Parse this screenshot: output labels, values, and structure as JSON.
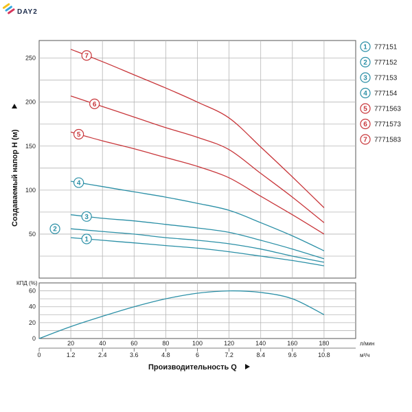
{
  "logo": {
    "text": "DAY2"
  },
  "chart_data": [
    {
      "type": "line",
      "ylabel": "Создаваемый напор Н (м)",
      "ylim": [
        0,
        270
      ],
      "xlim": [
        0,
        200
      ],
      "yticks": [
        0,
        50,
        100,
        150,
        200,
        250
      ],
      "grid": true,
      "legend_position": "right",
      "colors": {
        "red": "#c8363a",
        "teal": "#2a8fa6"
      },
      "series": [
        {
          "name": "777151",
          "number": "1",
          "color": "#2a8fa6",
          "label_at": 30,
          "x": [
            20,
            40,
            60,
            80,
            100,
            120,
            140,
            160,
            180
          ],
          "y": [
            46,
            43,
            40,
            37,
            34,
            30,
            25,
            20,
            14
          ]
        },
        {
          "name": "777152",
          "number": "2",
          "color": "#2a8fa6",
          "label_at": 10,
          "x": [
            20,
            40,
            60,
            80,
            100,
            120,
            140,
            160,
            180
          ],
          "y": [
            56,
            53,
            50,
            46,
            43,
            39,
            33,
            25,
            18
          ]
        },
        {
          "name": "777153",
          "number": "3",
          "color": "#2a8fa6",
          "label_at": 30,
          "x": [
            20,
            40,
            60,
            80,
            100,
            120,
            140,
            160,
            180
          ],
          "y": [
            72,
            68,
            65,
            61,
            57,
            52,
            43,
            33,
            22
          ]
        },
        {
          "name": "777154",
          "number": "4",
          "color": "#2a8fa6",
          "label_at": 25,
          "x": [
            20,
            40,
            60,
            80,
            100,
            120,
            140,
            160,
            180
          ],
          "y": [
            110,
            104,
            98,
            92,
            85,
            77,
            63,
            48,
            31
          ]
        },
        {
          "name": "7771563",
          "number": "5",
          "color": "#c8363a",
          "label_at": 25,
          "x": [
            20,
            40,
            60,
            80,
            100,
            120,
            140,
            160,
            180
          ],
          "y": [
            166,
            156,
            147,
            137,
            127,
            114,
            93,
            72,
            50
          ]
        },
        {
          "name": "7771573",
          "number": "6",
          "color": "#c8363a",
          "label_at": 35,
          "x": [
            20,
            40,
            60,
            80,
            100,
            120,
            140,
            160,
            180
          ],
          "y": [
            207,
            195,
            183,
            171,
            160,
            146,
            119,
            92,
            63
          ]
        },
        {
          "name": "7771583",
          "number": "7",
          "color": "#c8363a",
          "label_at": 30,
          "x": [
            20,
            40,
            60,
            80,
            100,
            120,
            140,
            160,
            180
          ],
          "y": [
            260,
            246,
            231,
            216,
            200,
            182,
            149,
            115,
            80
          ]
        }
      ]
    },
    {
      "type": "line",
      "ylabel": "КПД (%)",
      "xlabel": "Производительность Q",
      "ylim": [
        0,
        70
      ],
      "xlim": [
        0,
        200
      ],
      "yticks": [
        0,
        20,
        40,
        60
      ],
      "grid": true,
      "x_ticks_primary": [
        "0",
        "20",
        "40",
        "60",
        "80",
        "100",
        "120",
        "140",
        "160",
        "180"
      ],
      "x_ticks_primary_unit": "л/мин",
      "x_ticks_secondary": [
        "0",
        "1.2",
        "2.4",
        "3.6",
        "4.8",
        "6",
        "7.2",
        "8.4",
        "9.6",
        "10.8"
      ],
      "x_ticks_secondary_unit": "м³/ч",
      "series": [
        {
          "color": "#2a8fa6",
          "x": [
            0,
            20,
            40,
            60,
            80,
            100,
            120,
            140,
            160,
            180
          ],
          "y": [
            0,
            15,
            28,
            40,
            50,
            57,
            60,
            58,
            50,
            30
          ]
        }
      ]
    }
  ]
}
